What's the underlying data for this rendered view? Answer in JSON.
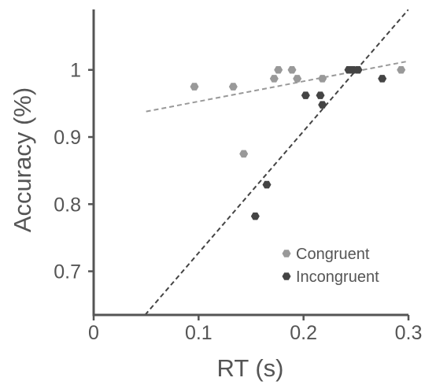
{
  "chart_data": {
    "type": "scatter",
    "title": "",
    "xlabel": "RT (s)",
    "ylabel": "Accuracy (%)",
    "xlim": [
      0,
      0.3
    ],
    "ylim": [
      0.635,
      1.09
    ],
    "x_ticks": [
      0,
      0.1,
      0.2,
      0.3
    ],
    "x_tick_labels": [
      "0",
      "0.1",
      "0.2",
      "0.3"
    ],
    "y_ticks": [
      0.7,
      0.8,
      0.9,
      1.0
    ],
    "y_tick_labels": [
      "0.7",
      "0.8",
      "0.9",
      "1"
    ],
    "grid": false,
    "legend_position": "bottom-right",
    "series": [
      {
        "name": "Congruent",
        "color": "#999999",
        "marker": "hexagon",
        "x": [
          0.096,
          0.133,
          0.143,
          0.172,
          0.176,
          0.189,
          0.194,
          0.218,
          0.249,
          0.293
        ],
        "y": [
          0.975,
          0.975,
          0.875,
          0.987,
          1.0,
          1.0,
          0.987,
          0.987,
          1.0,
          1.0
        ],
        "trend_line": {
          "x": [
            0.05,
            0.3
          ],
          "y": [
            0.938,
            1.013
          ],
          "style": "dashed"
        }
      },
      {
        "name": "Incongruent",
        "color": "#444444",
        "marker": "hexagon",
        "x": [
          0.154,
          0.165,
          0.202,
          0.216,
          0.218,
          0.243,
          0.247,
          0.252,
          0.275
        ],
        "y": [
          0.782,
          0.829,
          0.962,
          0.962,
          0.948,
          1.0,
          1.0,
          1.0,
          0.987
        ],
        "trend_line": {
          "x": [
            0.049,
            0.3
          ],
          "y": [
            0.635,
            1.09
          ],
          "style": "dashed"
        }
      }
    ]
  }
}
